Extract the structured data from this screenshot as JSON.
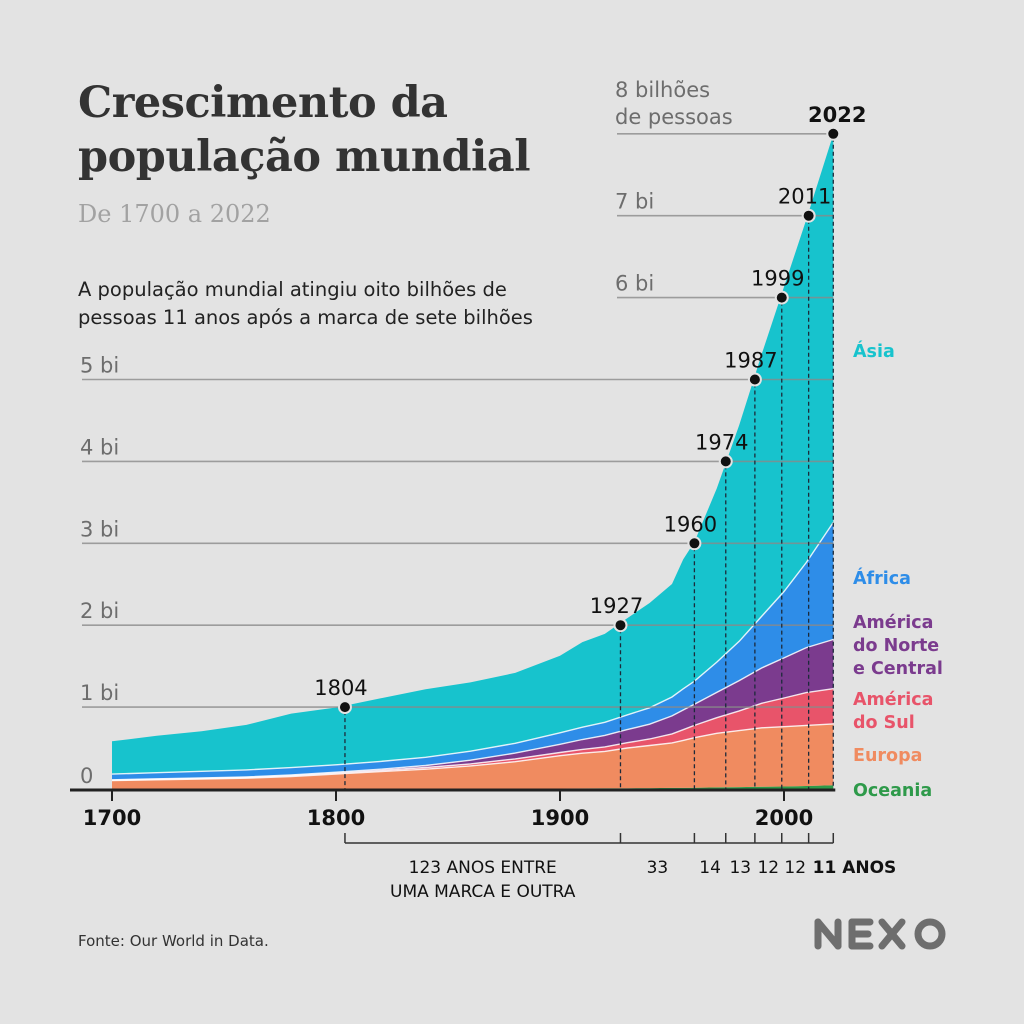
{
  "header": {
    "title_line1": "Crescimento da",
    "title_line2": "população mundial",
    "subtitle": "De 1700 a 2022",
    "lede_line1": "A população mundial atingiu oito bilhões de",
    "lede_line2": "pessoas 11 anos após a marca de sete bilhões"
  },
  "footer": {
    "source": "Fonte: Our World in Data.",
    "logo": "NEXO"
  },
  "chart_data": {
    "type": "area",
    "stacked": true,
    "title": "Crescimento da população mundial",
    "subtitle": "De 1700 a 2022",
    "xlabel": "",
    "ylabel": "",
    "xlim": [
      1700,
      2022
    ],
    "ylim": [
      0,
      8
    ],
    "unit": "bilhões",
    "grid": true,
    "legend_position": "right",
    "x": [
      1700,
      1720,
      1740,
      1760,
      1780,
      1800,
      1820,
      1840,
      1860,
      1880,
      1900,
      1910,
      1920,
      1930,
      1940,
      1950,
      1955,
      1960,
      1970,
      1980,
      1990,
      2000,
      2010,
      2022
    ],
    "series": [
      {
        "name": "Oceania",
        "color": "#2e9a4a",
        "values": [
          0.002,
          0.002,
          0.002,
          0.002,
          0.002,
          0.002,
          0.002,
          0.002,
          0.002,
          0.003,
          0.006,
          0.007,
          0.009,
          0.01,
          0.011,
          0.013,
          0.014,
          0.016,
          0.02,
          0.023,
          0.027,
          0.031,
          0.037,
          0.045
        ]
      },
      {
        "name": "Europa",
        "color": "#f08b60",
        "values": [
          0.1,
          0.11,
          0.12,
          0.13,
          0.15,
          0.18,
          0.21,
          0.24,
          0.28,
          0.33,
          0.4,
          0.43,
          0.45,
          0.49,
          0.52,
          0.55,
          0.58,
          0.61,
          0.66,
          0.69,
          0.72,
          0.73,
          0.74,
          0.75
        ]
      },
      {
        "name": "América do Sul",
        "color": "#e8546a",
        "values": [
          0.006,
          0.007,
          0.008,
          0.009,
          0.01,
          0.012,
          0.015,
          0.02,
          0.025,
          0.035,
          0.04,
          0.047,
          0.055,
          0.065,
          0.08,
          0.11,
          0.13,
          0.15,
          0.19,
          0.24,
          0.3,
          0.35,
          0.4,
          0.43
        ]
      },
      {
        "name": "América do Norte e Central",
        "color": "#7b3b8e",
        "values": [
          0.004,
          0.005,
          0.006,
          0.007,
          0.009,
          0.011,
          0.015,
          0.025,
          0.045,
          0.07,
          0.1,
          0.12,
          0.14,
          0.16,
          0.18,
          0.22,
          0.24,
          0.26,
          0.31,
          0.37,
          0.43,
          0.49,
          0.55,
          0.6
        ]
      },
      {
        "name": "África",
        "color": "#2e8de8",
        "values": [
          0.07,
          0.075,
          0.08,
          0.085,
          0.09,
          0.09,
          0.095,
          0.1,
          0.11,
          0.12,
          0.14,
          0.15,
          0.16,
          0.18,
          0.2,
          0.23,
          0.26,
          0.28,
          0.37,
          0.48,
          0.63,
          0.81,
          1.04,
          1.43
        ]
      },
      {
        "name": "Ásia",
        "color": "#17c3cd",
        "values": [
          0.4,
          0.45,
          0.49,
          0.55,
          0.66,
          0.7,
          0.77,
          0.83,
          0.84,
          0.86,
          0.94,
          1.04,
          1.08,
          1.18,
          1.28,
          1.38,
          1.58,
          1.7,
          2.12,
          2.64,
          3.2,
          3.72,
          4.19,
          4.74
        ]
      }
    ],
    "milestones": [
      {
        "year": "1804",
        "value": 1,
        "bold": false
      },
      {
        "year": "1927",
        "value": 2,
        "bold": false
      },
      {
        "year": "1960",
        "value": 3,
        "bold": false
      },
      {
        "year": "1974",
        "value": 4,
        "bold": false
      },
      {
        "year": "1987",
        "value": 5,
        "bold": false
      },
      {
        "year": "1999",
        "value": 6,
        "bold": false
      },
      {
        "year": "2011",
        "value": 7,
        "bold": false
      },
      {
        "year": "2022",
        "value": 8,
        "bold": true
      }
    ],
    "y_ticks": [
      {
        "value": 0,
        "label": "0"
      },
      {
        "value": 1,
        "label": "1 bi"
      },
      {
        "value": 2,
        "label": "2 bi"
      },
      {
        "value": 3,
        "label": "3 bi"
      },
      {
        "value": 4,
        "label": "4 bi"
      },
      {
        "value": 5,
        "label": "5 bi"
      },
      {
        "value": 6,
        "label": "6 bi"
      },
      {
        "value": 7,
        "label": "7 bi"
      },
      {
        "value": 8,
        "label_line1": "8 bilhões",
        "label_line2": "de pessoas"
      }
    ],
    "x_ticks": [
      {
        "value": 1700,
        "label": "1700"
      },
      {
        "value": 1800,
        "label": "1800"
      },
      {
        "value": 1900,
        "label": "1900"
      },
      {
        "value": 2000,
        "label": "2000"
      }
    ],
    "gaps": [
      {
        "from": 1804,
        "to": 1927,
        "label_line1": "123 ANOS ENTRE",
        "label_line2": "UMA MARCA E OUTRA"
      },
      {
        "from": 1927,
        "to": 1960,
        "label": "33"
      },
      {
        "from": 1960,
        "to": 1974,
        "label": "14"
      },
      {
        "from": 1974,
        "to": 1987,
        "label": "13"
      },
      {
        "from": 1987,
        "to": 1999,
        "label": "12"
      },
      {
        "from": 1999,
        "to": 2011,
        "label": "12"
      },
      {
        "from": 2011,
        "to": 2022,
        "label_num": "11",
        "label_unit": "ANOS"
      }
    ],
    "legend": [
      {
        "name": "Ásia",
        "lines": [
          "Ásia"
        ],
        "color": "#17c3cd"
      },
      {
        "name": "África",
        "lines": [
          "África"
        ],
        "color": "#2e8de8"
      },
      {
        "name": "América do Norte e Central",
        "lines": [
          "América",
          "do Norte",
          "e Central"
        ],
        "color": "#7b3b8e"
      },
      {
        "name": "América do Sul",
        "lines": [
          "América",
          "do Sul"
        ],
        "color": "#e8546a"
      },
      {
        "name": "Europa",
        "lines": [
          "Europa"
        ],
        "color": "#f08b60"
      },
      {
        "name": "Oceania",
        "lines": [
          "Oceania"
        ],
        "color": "#2e9a4a"
      }
    ]
  }
}
